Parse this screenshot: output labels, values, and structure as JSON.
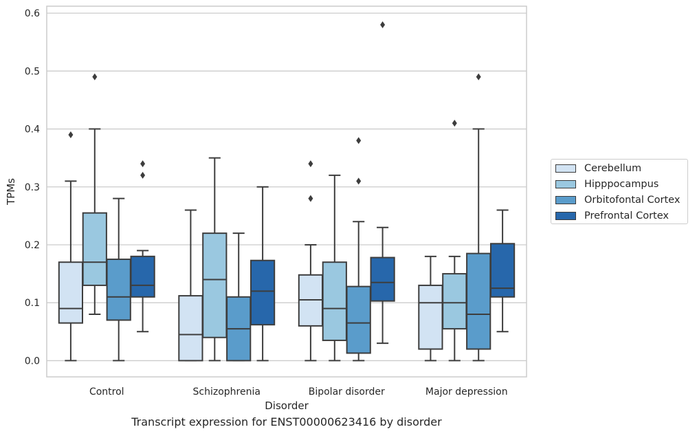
{
  "chart_data": {
    "type": "boxplot",
    "xlabel": "Disorder",
    "ylabel": "TPMs",
    "ylim": [
      -0.028,
      0.612
    ],
    "yticks": [
      0.0,
      0.1,
      0.2,
      0.3,
      0.4,
      0.5,
      0.6
    ],
    "ytick_labels": [
      "0.0",
      "0.1",
      "0.2",
      "0.3",
      "0.4",
      "0.5",
      "0.6"
    ],
    "grid": "horizontal",
    "legend_position": "right",
    "categories": [
      "Control",
      "Schizophrenia",
      "Bipolar disorder",
      "Major depression"
    ],
    "series": [
      {
        "name": "Cerebellum",
        "color": "#d2e3f3",
        "boxes": [
          {
            "whisker_low": 0.0,
            "q1": 0.065,
            "median": 0.09,
            "q3": 0.17,
            "whisker_high": 0.31,
            "outliers": [
              0.39
            ]
          },
          {
            "whisker_low": 0.0,
            "q1": 0.0,
            "median": 0.045,
            "q3": 0.112,
            "whisker_high": 0.26,
            "outliers": []
          },
          {
            "whisker_low": 0.0,
            "q1": 0.06,
            "median": 0.105,
            "q3": 0.148,
            "whisker_high": 0.2,
            "outliers": [
              0.28,
              0.34
            ]
          },
          {
            "whisker_low": 0.0,
            "q1": 0.02,
            "median": 0.1,
            "q3": 0.13,
            "whisker_high": 0.18,
            "outliers": []
          }
        ]
      },
      {
        "name": "Hipppocampus",
        "color": "#9ac8e0",
        "boxes": [
          {
            "whisker_low": 0.08,
            "q1": 0.13,
            "median": 0.17,
            "q3": 0.255,
            "whisker_high": 0.4,
            "outliers": [
              0.49
            ]
          },
          {
            "whisker_low": 0.0,
            "q1": 0.04,
            "median": 0.14,
            "q3": 0.22,
            "whisker_high": 0.35,
            "outliers": []
          },
          {
            "whisker_low": 0.0,
            "q1": 0.035,
            "median": 0.09,
            "q3": 0.17,
            "whisker_high": 0.32,
            "outliers": []
          },
          {
            "whisker_low": 0.0,
            "q1": 0.055,
            "median": 0.1,
            "q3": 0.15,
            "whisker_high": 0.18,
            "outliers": [
              0.41
            ]
          }
        ]
      },
      {
        "name": "Orbitofontal Cortex",
        "color": "#5a9ccb",
        "boxes": [
          {
            "whisker_low": 0.0,
            "q1": 0.07,
            "median": 0.11,
            "q3": 0.175,
            "whisker_high": 0.28,
            "outliers": []
          },
          {
            "whisker_low": 0.0,
            "q1": 0.0,
            "median": 0.055,
            "q3": 0.11,
            "whisker_high": 0.22,
            "outliers": []
          },
          {
            "whisker_low": 0.0,
            "q1": 0.013,
            "median": 0.065,
            "q3": 0.128,
            "whisker_high": 0.24,
            "outliers": [
              0.31,
              0.38
            ]
          },
          {
            "whisker_low": 0.0,
            "q1": 0.02,
            "median": 0.08,
            "q3": 0.185,
            "whisker_high": 0.4,
            "outliers": [
              0.49
            ]
          }
        ]
      },
      {
        "name": "Prefrontal Cortex",
        "color": "#2767ab",
        "boxes": [
          {
            "whisker_low": 0.05,
            "q1": 0.11,
            "median": 0.13,
            "q3": 0.18,
            "whisker_high": 0.19,
            "outliers": [
              0.32,
              0.34
            ]
          },
          {
            "whisker_low": 0.0,
            "q1": 0.062,
            "median": 0.12,
            "q3": 0.173,
            "whisker_high": 0.3,
            "outliers": []
          },
          {
            "whisker_low": 0.03,
            "q1": 0.103,
            "median": 0.135,
            "q3": 0.178,
            "whisker_high": 0.23,
            "outliers": [
              0.58
            ]
          },
          {
            "whisker_low": 0.05,
            "q1": 0.11,
            "median": 0.125,
            "q3": 0.202,
            "whisker_high": 0.26,
            "outliers": []
          }
        ]
      }
    ]
  },
  "caption": "Transcript expression for ENST00000623416 by disorder"
}
